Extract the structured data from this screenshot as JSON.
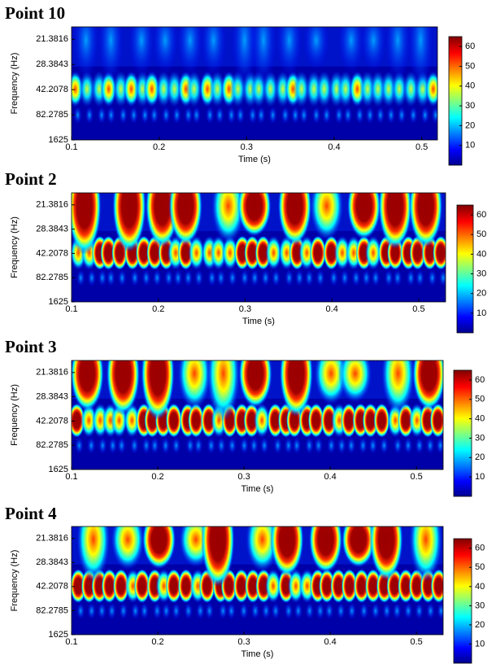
{
  "chart_data": [
    {
      "type": "heatmap",
      "title": "Point 10",
      "xlabel": "Time (s)",
      "ylabel": "Frequency (Hz)",
      "xlim": [
        0.1,
        0.518
      ],
      "xticks": [
        0.1,
        0.2,
        0.3,
        0.4,
        0.5
      ],
      "yscale": "reciprocal",
      "ylim": [
        1625,
        19.05
      ],
      "yticks": [
        21.3816,
        28.3843,
        42.2078,
        82.2785,
        1625
      ],
      "colormap": "jet",
      "clim": [
        0,
        65
      ],
      "cticks": [
        10,
        20,
        30,
        40,
        50,
        60
      ]
    },
    {
      "type": "heatmap",
      "title": "Point 2",
      "xlabel": "Time (s)",
      "ylabel": "Frequency (Hz)",
      "xlim": [
        0.1,
        0.531
      ],
      "xticks": [
        0.1,
        0.2,
        0.3,
        0.4,
        0.5
      ],
      "yscale": "reciprocal",
      "ylim": [
        1625,
        19.05
      ],
      "yticks": [
        21.3816,
        28.3843,
        42.2078,
        82.2785,
        1625
      ],
      "colormap": "jet",
      "clim": [
        0,
        65
      ],
      "cticks": [
        10,
        20,
        30,
        40,
        50,
        60
      ]
    },
    {
      "type": "heatmap",
      "title": "Point 3",
      "xlabel": "Time (s)",
      "ylabel": "Frequency (Hz)",
      "xlim": [
        0.1,
        0.531
      ],
      "xticks": [
        0.1,
        0.2,
        0.3,
        0.4,
        0.5
      ],
      "yscale": "reciprocal",
      "ylim": [
        1625,
        19.05
      ],
      "yticks": [
        21.3816,
        28.3843,
        42.2078,
        82.2785,
        1625
      ],
      "colormap": "jet",
      "clim": [
        0,
        65
      ],
      "cticks": [
        10,
        20,
        30,
        40,
        50,
        60
      ]
    },
    {
      "type": "heatmap",
      "title": "Point 4",
      "xlabel": "Time (s)",
      "ylabel": "Frequency (Hz)",
      "xlim": [
        0.1,
        0.531
      ],
      "xticks": [
        0.1,
        0.2,
        0.3,
        0.4,
        0.5
      ],
      "yscale": "reciprocal",
      "ylim": [
        1625,
        19.05
      ],
      "yticks": [
        21.3816,
        28.3843,
        42.2078,
        82.2785,
        1625
      ],
      "colormap": "jet",
      "clim": [
        0,
        65
      ],
      "cticks": [
        10,
        20,
        30,
        40,
        50,
        60
      ]
    }
  ]
}
